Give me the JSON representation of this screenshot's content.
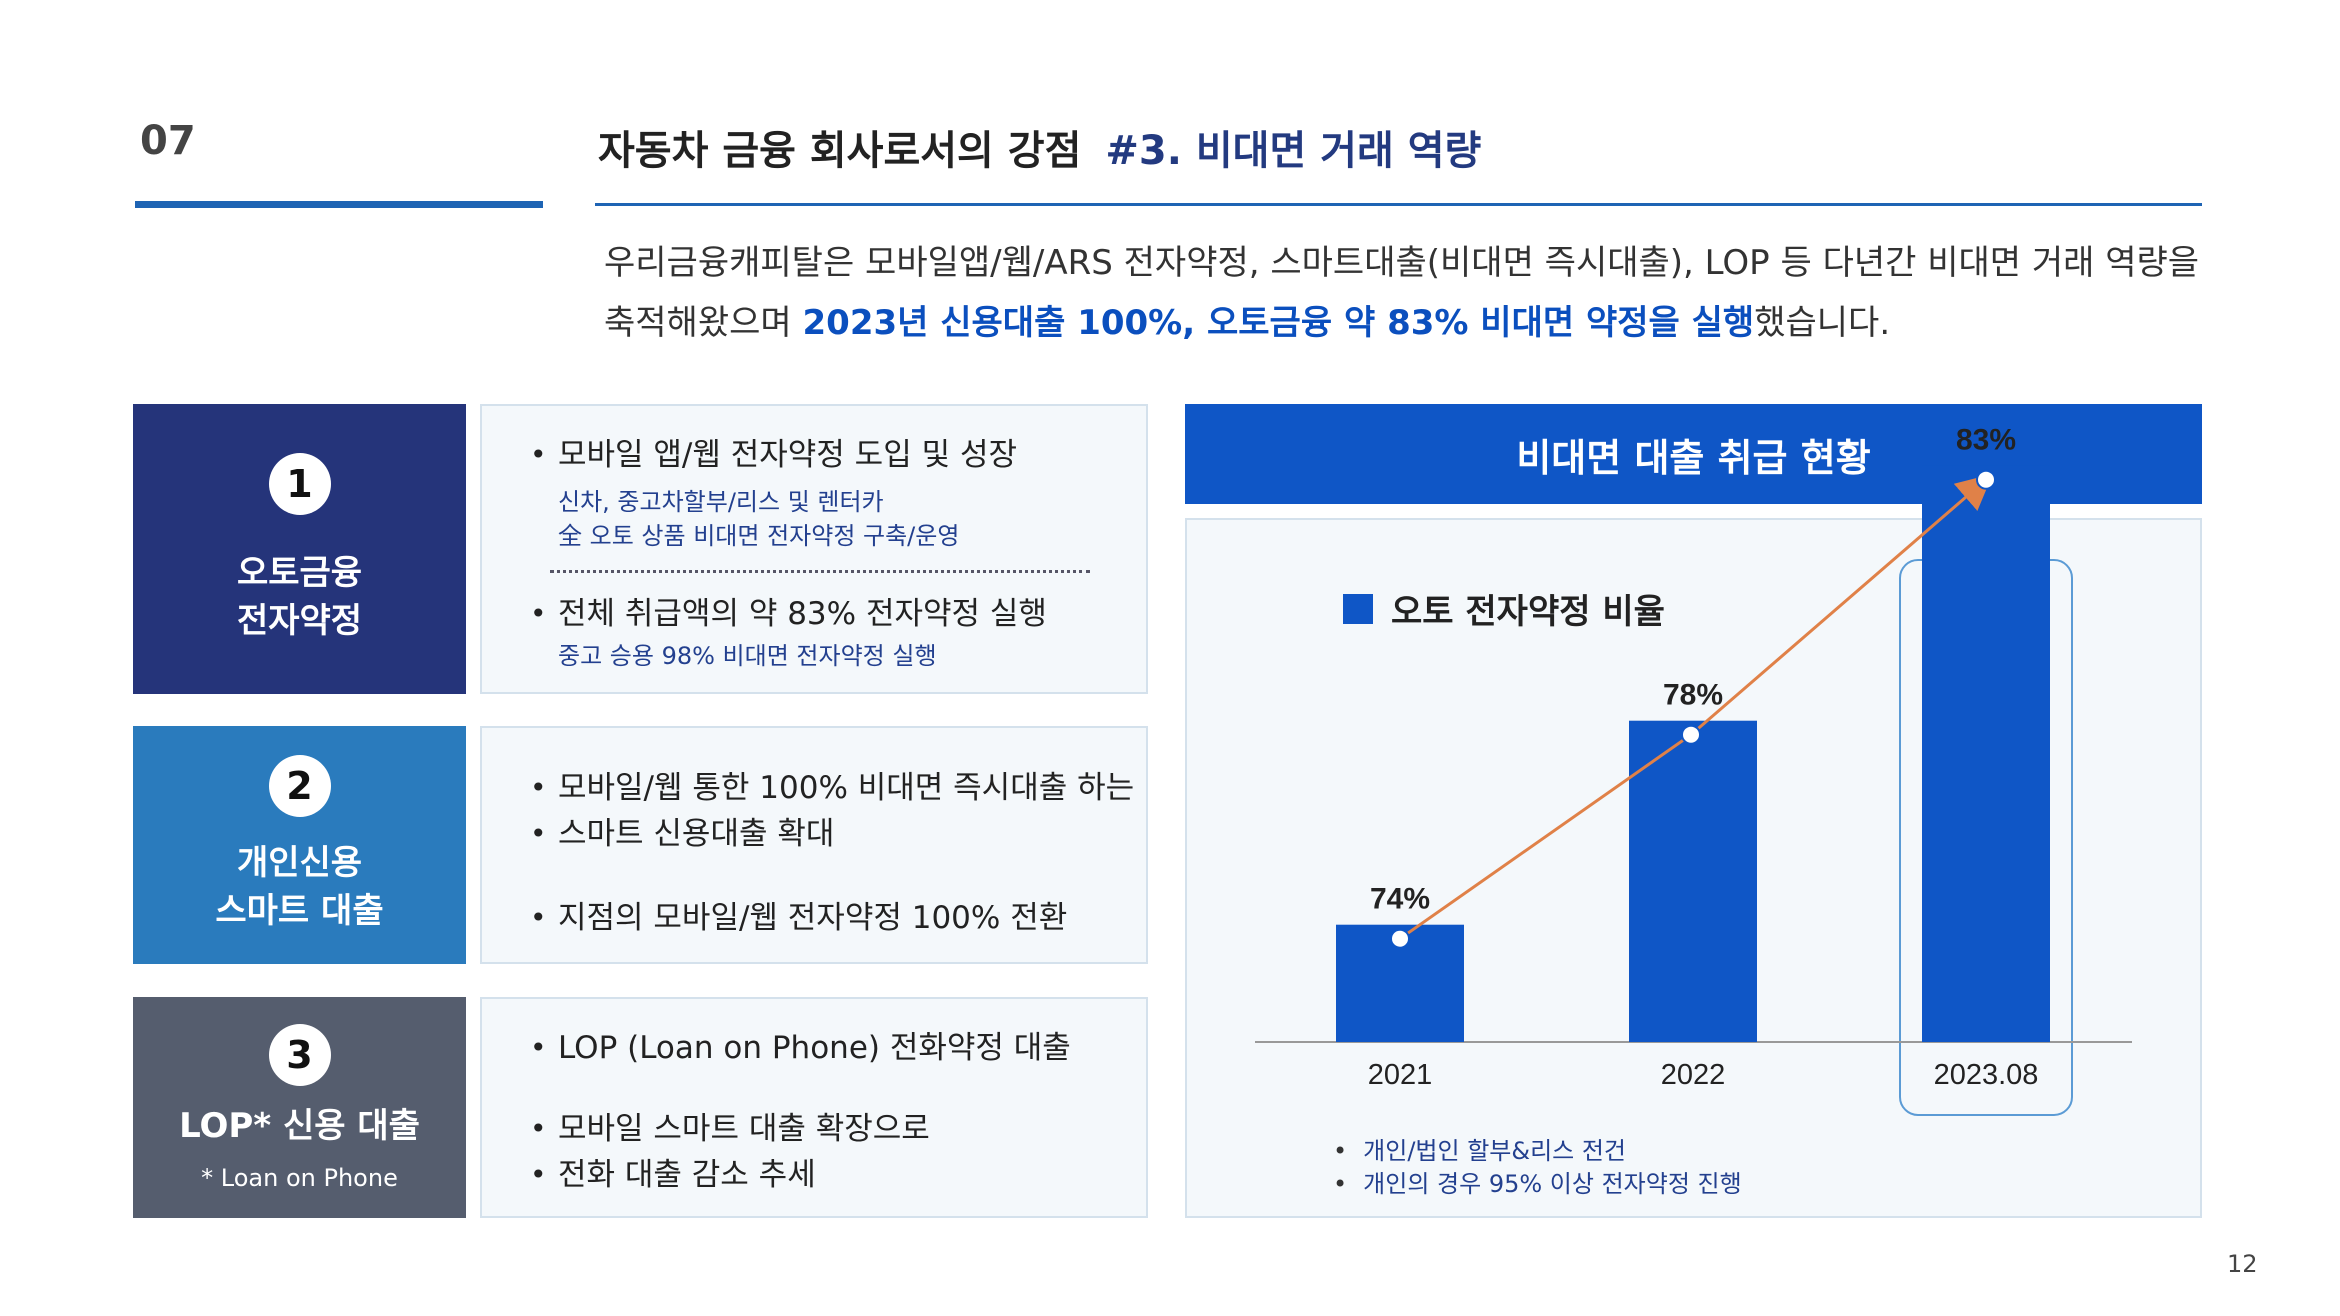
{
  "header": {
    "section_number": "07",
    "title": "자동차 금융 회사로서의 강점",
    "title_accent": "#3. 비대면 거래 역량"
  },
  "intro": {
    "line1": "우리금융캐피탈은 모바일앱/웹/ARS 전자약정, 스마트대출(비대면 즉시대출), LOP 등 다년간 비대면 거래 역량을",
    "line2_prefix": "축적해왔으며 ",
    "line2_highlight": "2023년 신용대출 100%, 오토금융 약 83% 비대면 약정을 실행",
    "line2_suffix": "했습니다."
  },
  "cards": [
    {
      "number": "1",
      "name": "오토금융\n전자약정",
      "color": "#25347a",
      "bullets": [
        {
          "text": "모바일 앱/웹 전자약정 도입 및 성장",
          "subs": [
            "신차, 중고차할부/리스 및 렌터카",
            "全 오토 상품 비대면 전자약정 구축/운영"
          ]
        },
        {
          "text": "전체 취급액의 약 83% 전자약정 실행",
          "subs": [
            "중고 승용 98% 비대면 전자약정 실행"
          ]
        }
      ]
    },
    {
      "number": "2",
      "name": "개인신용\n스마트 대출",
      "color": "#2a7bbd",
      "bullets": [
        {
          "text": "모바일/웹 통한 100% 비대면 즉시대출 하는",
          "cont": "스마트 신용대출 확대"
        },
        {
          "text": "지점의 모바일/웹 전자약정 100% 전환"
        }
      ]
    },
    {
      "number": "3",
      "name": "LOP* 신용 대출",
      "note": "* Loan on Phone",
      "color": "#555d6e",
      "bullets": [
        {
          "text": "LOP (Loan on Phone) 전화약정 대출"
        },
        {
          "text": "모바일 스마트 대출 확장으로",
          "cont": "전화 대출 감소 추세"
        }
      ]
    }
  ],
  "chart_panel": {
    "heading": "비대면 대출 취급 현황",
    "notes": [
      "개인/법인 할부&리스 전건",
      "개인의 경우 95% 이상 전자약정 진행"
    ]
  },
  "chart_data": {
    "type": "bar",
    "categories": [
      "2021",
      "2022",
      "2023.08"
    ],
    "series": [
      {
        "name": "오토 전자약정 비율",
        "values": [
          74,
          78,
          83
        ]
      }
    ],
    "data_labels": [
      "74%",
      "78%",
      "83%"
    ],
    "highlighted_category": "2023.08",
    "trend_line": true,
    "bar_color": "#0f56c6",
    "line_color": "#e08148",
    "grid": false,
    "legend": "top-left"
  },
  "page_number": "12"
}
